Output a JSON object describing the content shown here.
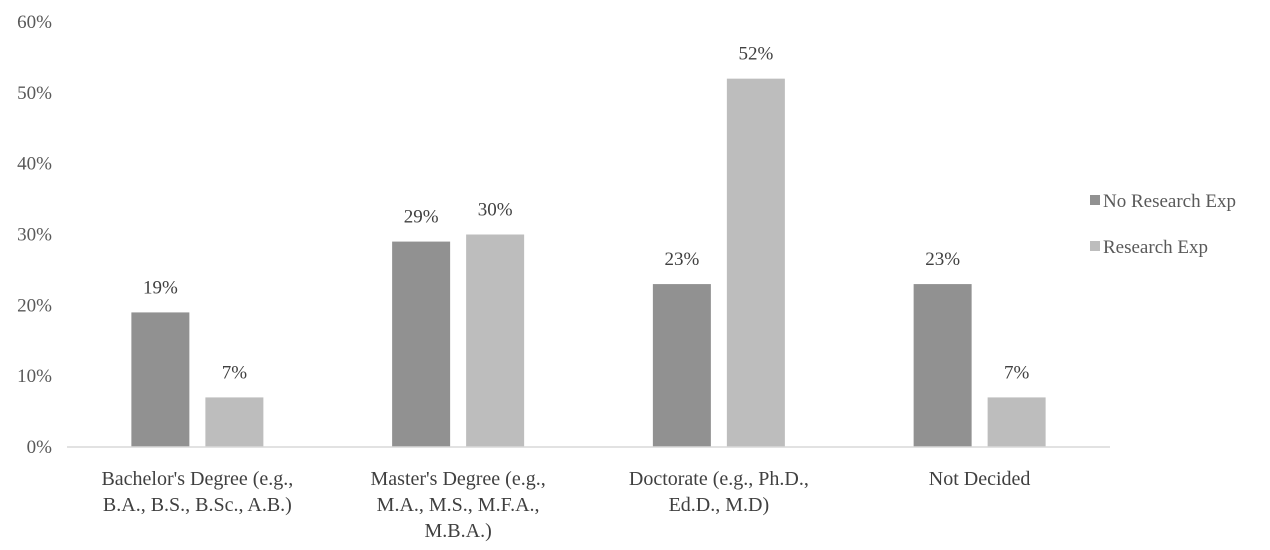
{
  "chart_data": {
    "type": "bar",
    "title": "",
    "xlabel": "",
    "ylabel": "",
    "ylim": [
      0,
      60
    ],
    "y_ticks": [
      0,
      10,
      20,
      30,
      40,
      50,
      60
    ],
    "y_tick_labels": [
      "0%",
      "10%",
      "20%",
      "30%",
      "40%",
      "50%",
      "60%"
    ],
    "grid": false,
    "legend_position": "right",
    "categories": [
      [
        "Bachelor's Degree (e.g.,",
        "B.A., B.S., B.Sc., A.B.)"
      ],
      [
        "Master's Degree (e.g.,",
        "M.A., M.S., M.F.A.,",
        "M.B.A.)"
      ],
      [
        "Doctorate (e.g., Ph.D.,",
        "Ed.D.,  M.D)"
      ],
      [
        "Not Decided"
      ]
    ],
    "series": [
      {
        "name": "No Research Exp",
        "color": "#919191",
        "values": [
          19,
          29,
          23,
          23
        ],
        "labels": [
          "19%",
          "29%",
          "23%",
          "23%"
        ]
      },
      {
        "name": "Research Exp",
        "color": "#bdbdbd",
        "values": [
          7,
          30,
          52,
          7
        ],
        "labels": [
          "7%",
          "30%",
          "52%",
          "7%"
        ]
      }
    ]
  }
}
